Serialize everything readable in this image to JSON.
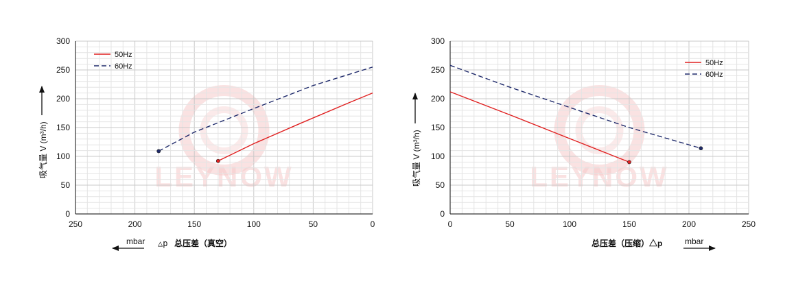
{
  "chart_data": [
    {
      "type": "line",
      "ylabel": "吸气量 V (m³/h)",
      "xlabel_prefix": "△p",
      "xlabel": "总压差（真空）",
      "x_unit": "mbar",
      "xlim": [
        250,
        0
      ],
      "ylim": [
        0,
        300
      ],
      "x_ticks": [
        250,
        200,
        150,
        100,
        50,
        0
      ],
      "y_ticks": [
        0,
        50,
        100,
        150,
        200,
        250,
        300
      ],
      "x_reversed": true,
      "grid": true,
      "legend": "top-left",
      "series": [
        {
          "name": "50Hz",
          "color": "#e02020",
          "dash": false,
          "end_marker": "left",
          "x": [
            130,
            100,
            60,
            20,
            0
          ],
          "y": [
            92,
            122,
            158,
            193,
            210
          ]
        },
        {
          "name": "60Hz",
          "color": "#1f2a6b",
          "dash": true,
          "end_marker": "left",
          "x": [
            180,
            150,
            100,
            50,
            0
          ],
          "y": [
            109,
            142,
            183,
            223,
            255
          ]
        }
      ]
    },
    {
      "type": "line",
      "ylabel": "吸气量 V (m³/h)",
      "xlabel_prefix": "",
      "xlabel": "总压差（压缩）△p",
      "x_unit": "mbar",
      "xlim": [
        0,
        250
      ],
      "ylim": [
        0,
        300
      ],
      "x_ticks": [
        0,
        50,
        100,
        150,
        200,
        250
      ],
      "y_ticks": [
        0,
        50,
        100,
        150,
        200,
        250,
        300
      ],
      "x_reversed": false,
      "grid": true,
      "legend": "top-right",
      "series": [
        {
          "name": "50Hz",
          "color": "#e02020",
          "dash": false,
          "end_marker": "right",
          "x": [
            0,
            50,
            100,
            150
          ],
          "y": [
            212,
            172,
            131,
            90
          ]
        },
        {
          "name": "60Hz",
          "color": "#1f2a6b",
          "dash": true,
          "end_marker": "right",
          "x": [
            0,
            50,
            100,
            150,
            210
          ],
          "y": [
            258,
            220,
            185,
            150,
            114
          ]
        }
      ]
    }
  ],
  "watermark": {
    "text": "LEYNOW",
    "color": "#f6caca"
  }
}
